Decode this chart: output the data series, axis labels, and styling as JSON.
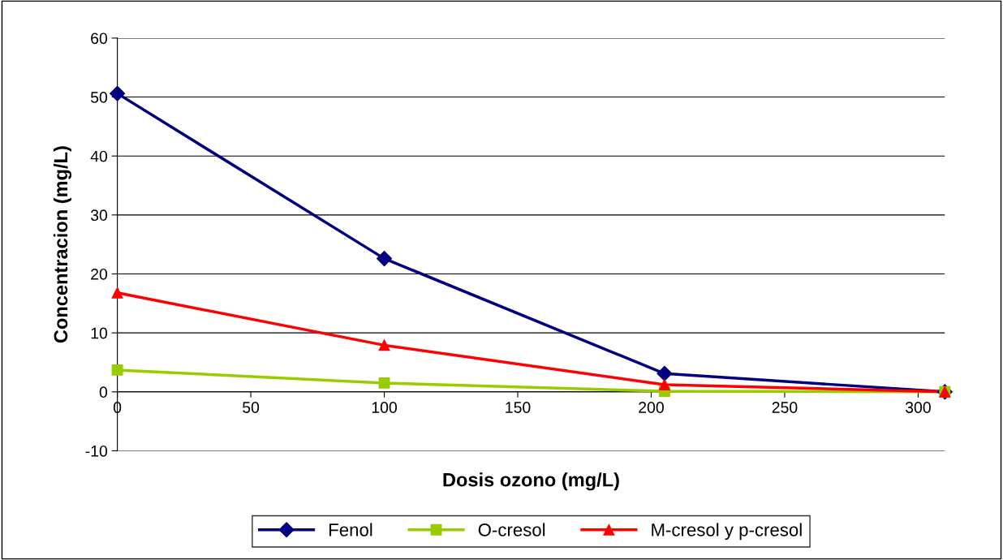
{
  "chart_data": {
    "type": "line",
    "xlabel": "Dosis ozono (mg/L)",
    "ylabel": "Concentracion (mg/L)",
    "x": [
      0,
      100,
      205,
      310
    ],
    "series": [
      {
        "name": "Fenol",
        "color": "#000080",
        "marker": "diamond",
        "values": [
          50.6,
          22.6,
          3.1,
          0
        ]
      },
      {
        "name": "O-cresol",
        "color": "#99cc00",
        "marker": "square",
        "values": [
          3.7,
          1.5,
          0.1,
          0
        ]
      },
      {
        "name": "M-cresol y p-cresol",
        "color": "#ff0000",
        "marker": "triangle",
        "values": [
          16.8,
          7.9,
          1.2,
          0
        ]
      }
    ],
    "xlim": [
      0,
      310
    ],
    "xticks": [
      0,
      50,
      100,
      150,
      200,
      250,
      300
    ],
    "ylim": [
      -10,
      60
    ],
    "yticks": [
      -10,
      0,
      10,
      20,
      30,
      40,
      50,
      60
    ],
    "grid": "y",
    "legend": "bottom",
    "line_style": "solid"
  }
}
